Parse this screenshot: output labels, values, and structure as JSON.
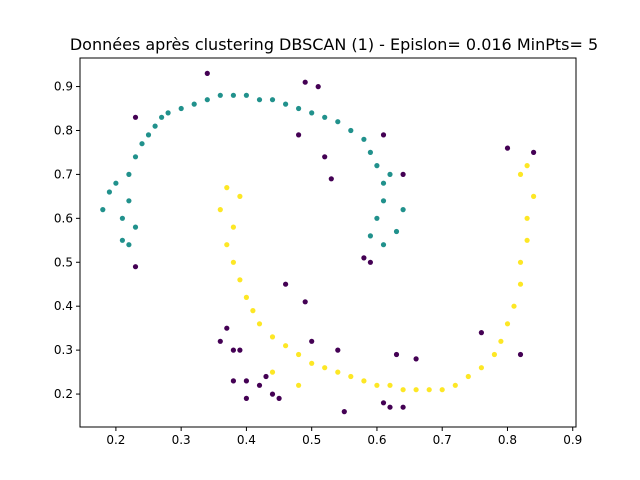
{
  "chart_data": {
    "type": "scatter",
    "title": "Données après clustering DBSCAN (1) - Epislon= 0.016 MinPts= 5",
    "xlabel": "",
    "ylabel": "",
    "xlim": [
      0.145,
      0.905
    ],
    "ylim": [
      0.125,
      0.965
    ],
    "xticks": [
      "0.2",
      "0.3",
      "0.4",
      "0.5",
      "0.6",
      "0.7",
      "0.8",
      "0.9"
    ],
    "yticks": [
      "0.2",
      "0.3",
      "0.4",
      "0.5",
      "0.6",
      "0.7",
      "0.8",
      "0.9"
    ],
    "grid": false,
    "series": [
      {
        "cluster": "0",
        "color": "#21918c",
        "points": [
          [
            0.18,
            0.62
          ],
          [
            0.19,
            0.66
          ],
          [
            0.2,
            0.68
          ],
          [
            0.21,
            0.6
          ],
          [
            0.21,
            0.55
          ],
          [
            0.22,
            0.54
          ],
          [
            0.23,
            0.58
          ],
          [
            0.22,
            0.64
          ],
          [
            0.22,
            0.7
          ],
          [
            0.23,
            0.74
          ],
          [
            0.24,
            0.77
          ],
          [
            0.25,
            0.79
          ],
          [
            0.26,
            0.81
          ],
          [
            0.27,
            0.83
          ],
          [
            0.28,
            0.84
          ],
          [
            0.3,
            0.85
          ],
          [
            0.32,
            0.86
          ],
          [
            0.34,
            0.87
          ],
          [
            0.36,
            0.88
          ],
          [
            0.38,
            0.88
          ],
          [
            0.4,
            0.88
          ],
          [
            0.42,
            0.87
          ],
          [
            0.44,
            0.87
          ],
          [
            0.46,
            0.86
          ],
          [
            0.48,
            0.85
          ],
          [
            0.5,
            0.84
          ],
          [
            0.52,
            0.83
          ],
          [
            0.54,
            0.82
          ],
          [
            0.56,
            0.8
          ],
          [
            0.58,
            0.78
          ],
          [
            0.59,
            0.75
          ],
          [
            0.6,
            0.72
          ],
          [
            0.61,
            0.68
          ],
          [
            0.61,
            0.64
          ],
          [
            0.6,
            0.6
          ],
          [
            0.59,
            0.56
          ],
          [
            0.61,
            0.54
          ],
          [
            0.63,
            0.57
          ],
          [
            0.64,
            0.62
          ],
          [
            0.62,
            0.7
          ]
        ]
      },
      {
        "cluster": "1",
        "color": "#fde725",
        "points": [
          [
            0.37,
            0.67
          ],
          [
            0.39,
            0.65
          ],
          [
            0.36,
            0.62
          ],
          [
            0.38,
            0.58
          ],
          [
            0.37,
            0.54
          ],
          [
            0.38,
            0.5
          ],
          [
            0.39,
            0.46
          ],
          [
            0.4,
            0.42
          ],
          [
            0.41,
            0.39
          ],
          [
            0.42,
            0.36
          ],
          [
            0.44,
            0.33
          ],
          [
            0.46,
            0.31
          ],
          [
            0.48,
            0.29
          ],
          [
            0.5,
            0.27
          ],
          [
            0.52,
            0.26
          ],
          [
            0.54,
            0.25
          ],
          [
            0.56,
            0.24
          ],
          [
            0.58,
            0.23
          ],
          [
            0.6,
            0.22
          ],
          [
            0.62,
            0.22
          ],
          [
            0.64,
            0.21
          ],
          [
            0.66,
            0.21
          ],
          [
            0.68,
            0.21
          ],
          [
            0.7,
            0.21
          ],
          [
            0.72,
            0.22
          ],
          [
            0.74,
            0.24
          ],
          [
            0.76,
            0.26
          ],
          [
            0.78,
            0.29
          ],
          [
            0.79,
            0.32
          ],
          [
            0.8,
            0.36
          ],
          [
            0.81,
            0.4
          ],
          [
            0.82,
            0.45
          ],
          [
            0.82,
            0.5
          ],
          [
            0.83,
            0.55
          ],
          [
            0.83,
            0.6
          ],
          [
            0.84,
            0.65
          ],
          [
            0.82,
            0.7
          ],
          [
            0.83,
            0.72
          ],
          [
            0.44,
            0.25
          ],
          [
            0.48,
            0.22
          ]
        ]
      },
      {
        "cluster": "-1",
        "color": "#440154",
        "points": [
          [
            0.34,
            0.93
          ],
          [
            0.49,
            0.91
          ],
          [
            0.51,
            0.9
          ],
          [
            0.23,
            0.83
          ],
          [
            0.48,
            0.79
          ],
          [
            0.61,
            0.79
          ],
          [
            0.52,
            0.74
          ],
          [
            0.64,
            0.7
          ],
          [
            0.53,
            0.69
          ],
          [
            0.8,
            0.76
          ],
          [
            0.84,
            0.75
          ],
          [
            0.23,
            0.49
          ],
          [
            0.58,
            0.51
          ],
          [
            0.59,
            0.5
          ],
          [
            0.46,
            0.45
          ],
          [
            0.49,
            0.41
          ],
          [
            0.37,
            0.35
          ],
          [
            0.5,
            0.32
          ],
          [
            0.36,
            0.32
          ],
          [
            0.76,
            0.34
          ],
          [
            0.54,
            0.3
          ],
          [
            0.38,
            0.3
          ],
          [
            0.39,
            0.3
          ],
          [
            0.63,
            0.29
          ],
          [
            0.82,
            0.29
          ],
          [
            0.66,
            0.28
          ],
          [
            0.43,
            0.24
          ],
          [
            0.38,
            0.23
          ],
          [
            0.4,
            0.23
          ],
          [
            0.42,
            0.22
          ],
          [
            0.44,
            0.2
          ],
          [
            0.4,
            0.19
          ],
          [
            0.45,
            0.19
          ],
          [
            0.61,
            0.18
          ],
          [
            0.62,
            0.17
          ],
          [
            0.64,
            0.17
          ],
          [
            0.55,
            0.16
          ]
        ]
      }
    ]
  }
}
